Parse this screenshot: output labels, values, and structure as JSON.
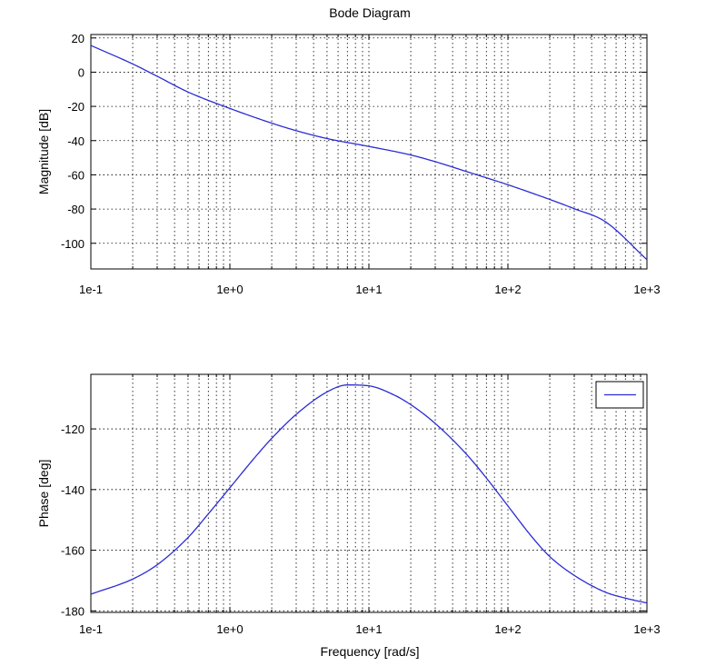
{
  "figure": {
    "title": "Bode Diagram",
    "xlabel": "Frequency [rad/s]"
  },
  "chart_data": [
    {
      "type": "line",
      "id": "magnitude",
      "title": "Bode Diagram",
      "xlabel": "",
      "ylabel": "Magnitude [dB]",
      "xscale": "log",
      "xlim": [
        0.1,
        1000
      ],
      "ylim": [
        -115,
        22
      ],
      "xticks": [
        0.1,
        1,
        10,
        100,
        1000
      ],
      "xtick_labels": [
        "1e-1",
        "1e+0",
        "1e+1",
        "1e+2",
        "1e+3"
      ],
      "yticks": [
        20,
        0,
        -20,
        -40,
        -60,
        -80,
        -100
      ],
      "ytick_labels": [
        "20",
        "0",
        "-20",
        "-40",
        "-60",
        "-80",
        "-100"
      ],
      "grid": true,
      "line_color": "#2b2bd4",
      "series": [
        {
          "x": [
            0.1,
            0.2,
            0.3,
            0.5,
            1,
            2,
            3,
            5,
            10,
            20,
            30,
            50,
            100,
            200,
            300,
            500,
            1000
          ],
          "y": [
            15.6,
            4.8,
            -2.4,
            -11.6,
            -21.2,
            -29.8,
            -34.2,
            -38.8,
            -43.4,
            -48.4,
            -52.3,
            -58.0,
            -65.8,
            -74.4,
            -79.8,
            -87.3,
            -109.6
          ]
        }
      ]
    },
    {
      "type": "line",
      "id": "phase",
      "title": "",
      "xlabel": "Frequency [rad/s]",
      "ylabel": "Phase [deg]",
      "xscale": "log",
      "xlim": [
        0.1,
        1000
      ],
      "ylim": [
        -180.5,
        -102
      ],
      "xticks": [
        0.1,
        1,
        10,
        100,
        1000
      ],
      "xtick_labels": [
        "1e-1",
        "1e+0",
        "1e+1",
        "1e+2",
        "1e+3"
      ],
      "yticks": [
        -120,
        -140,
        -160,
        -180
      ],
      "ytick_labels": [
        "-120",
        "-140",
        "-160",
        "-180"
      ],
      "grid": true,
      "legend": "top-right",
      "line_color": "#2b2bd4",
      "series": [
        {
          "x": [
            0.1,
            0.2,
            0.3,
            0.5,
            0.7,
            1,
            1.5,
            2,
            3,
            5,
            7,
            10,
            15,
            20,
            30,
            50,
            70,
            100,
            150,
            200,
            300,
            500,
            700,
            1000
          ],
          "y": [
            -174.5,
            -169.5,
            -164.8,
            -155.8,
            -148.0,
            -139.4,
            -129.6,
            -123.1,
            -115.2,
            -107.8,
            -105.5,
            -105.8,
            -108.7,
            -112.0,
            -118.2,
            -128.2,
            -136.2,
            -145.4,
            -155.8,
            -162.1,
            -168.3,
            -173.8,
            -175.8,
            -177.4
          ]
        }
      ]
    }
  ]
}
